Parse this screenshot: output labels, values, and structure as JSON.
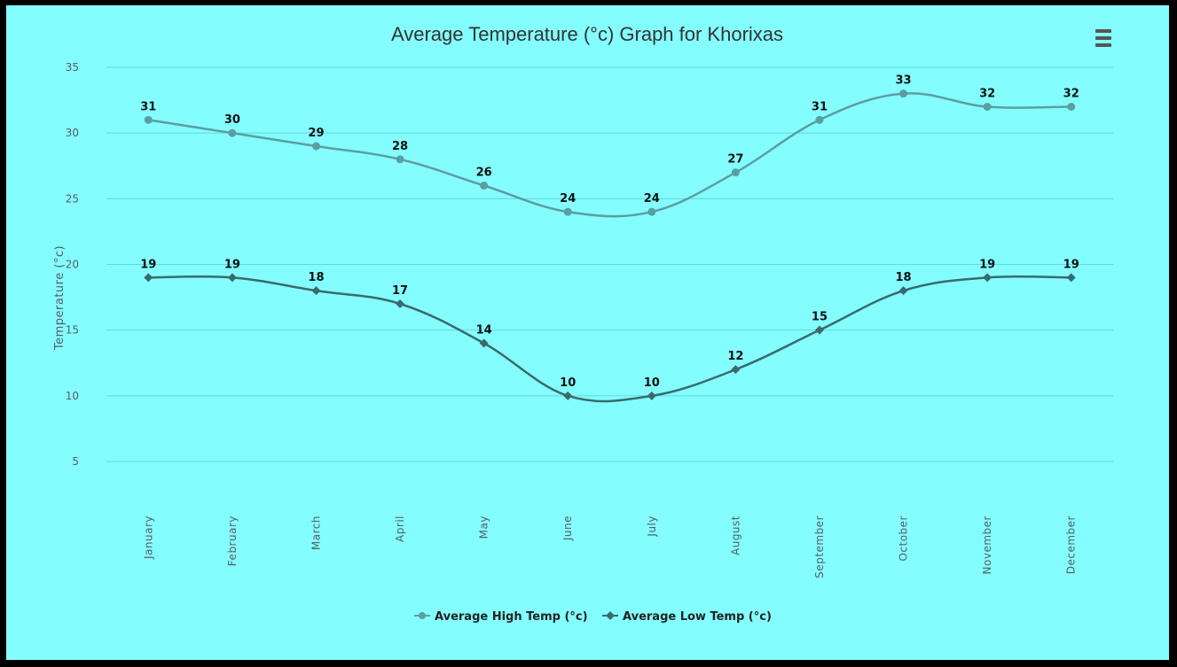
{
  "chart_data": {
    "type": "line",
    "title": "Average Temperature (°c) Graph for Khorixas",
    "ylabel": "Temperature (°c)",
    "xlabel": "",
    "ylim": [
      5,
      35
    ],
    "yticks": [
      5,
      10,
      15,
      20,
      25,
      30,
      35
    ],
    "grid": true,
    "legend_position": "bottom-center",
    "categories": [
      "January",
      "February",
      "March",
      "April",
      "May",
      "June",
      "July",
      "August",
      "September",
      "October",
      "November",
      "December"
    ],
    "series": [
      {
        "name": "Average High Temp (°c)",
        "values": [
          31,
          30,
          29,
          28,
          26,
          24,
          24,
          27,
          31,
          33,
          32,
          32
        ],
        "color": "#5b9ea0",
        "marker": "circle"
      },
      {
        "name": "Average Low Temp (°c)",
        "values": [
          19,
          19,
          18,
          17,
          14,
          10,
          10,
          12,
          15,
          18,
          19,
          19
        ],
        "color": "#3a6b6c",
        "marker": "diamond"
      }
    ]
  },
  "ui": {
    "background": "#84fdff",
    "menu_icon": "hamburger-menu-icon"
  }
}
